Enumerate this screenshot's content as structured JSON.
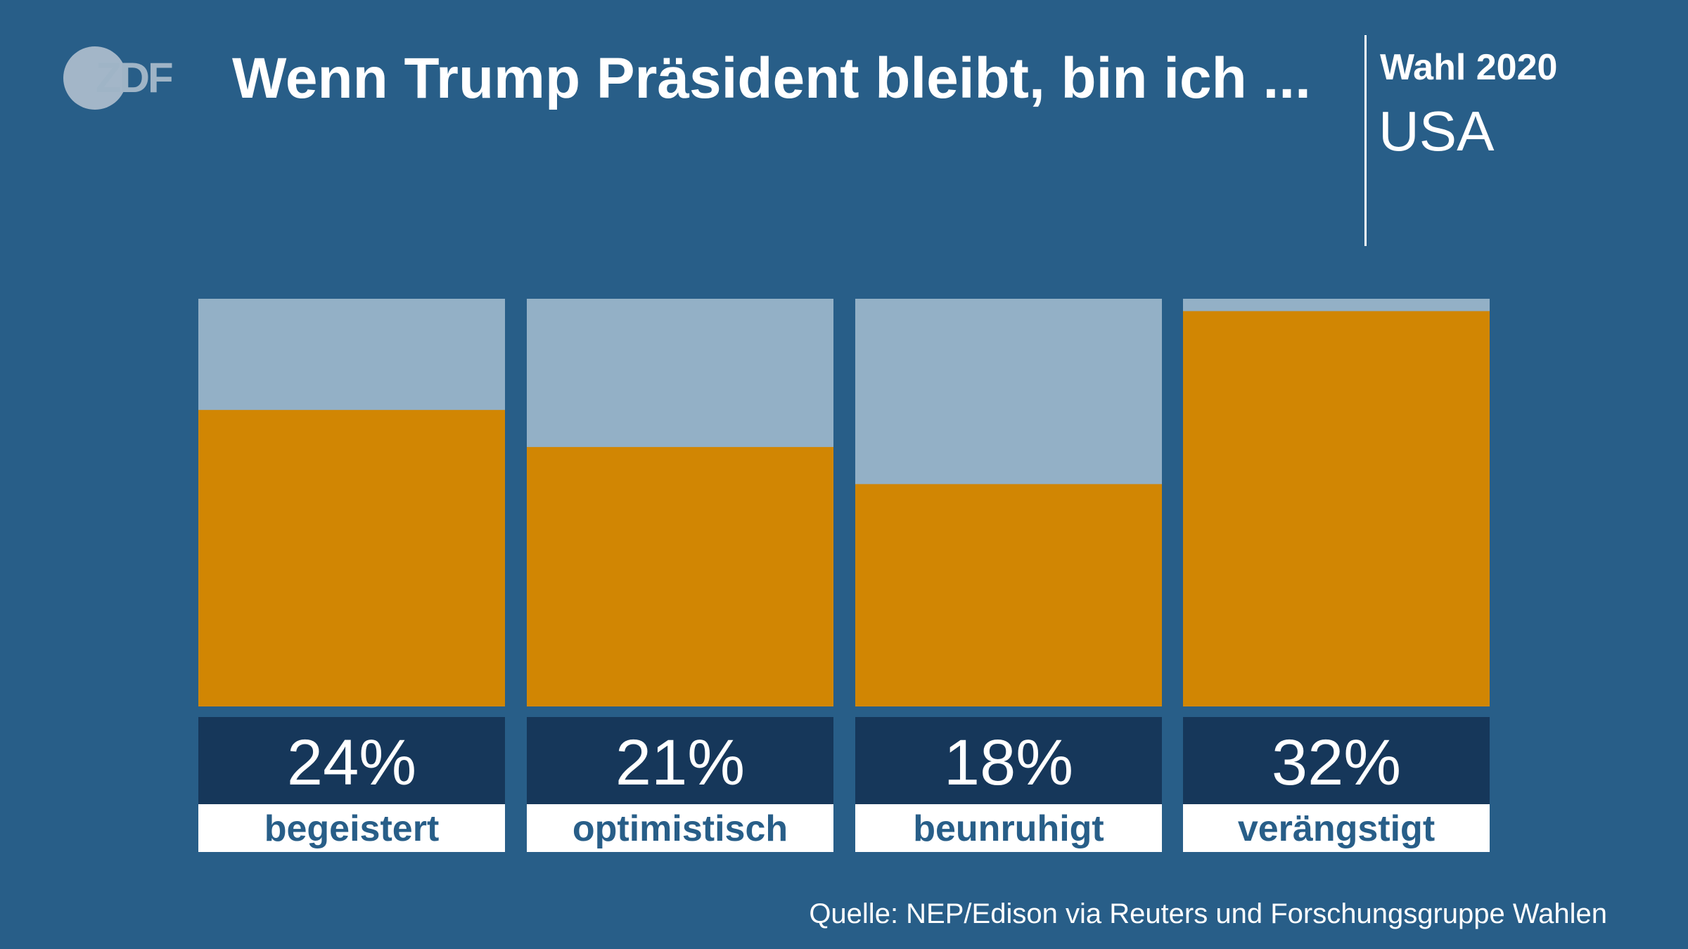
{
  "header": {
    "logo_text": "ZDF",
    "title": "Wenn Trump Präsident bleibt, bin ich ...",
    "subtitle": "Wahl 2020",
    "region": "USA"
  },
  "colors": {
    "background": "#285e88",
    "bar_fill": "#d18603",
    "bar_track": "#93b0c6",
    "value_box": "#16375a",
    "label_box": "#ffffff",
    "label_text": "#285e88"
  },
  "chart_data": {
    "type": "bar",
    "title": "Wenn Trump Präsident bleibt, bin ich ...",
    "categories": [
      "begeistert",
      "optimistisch",
      "beunruhigt",
      "verängstigt"
    ],
    "values": [
      24,
      21,
      18,
      32
    ],
    "value_labels": [
      "24%",
      "21%",
      "18%",
      "32%"
    ],
    "ylim": [
      0,
      33
    ],
    "xlabel": "",
    "ylabel": "",
    "grid": false
  },
  "footer": {
    "source": "Quelle: NEP/Edison via Reuters und Forschungsgruppe Wahlen"
  }
}
